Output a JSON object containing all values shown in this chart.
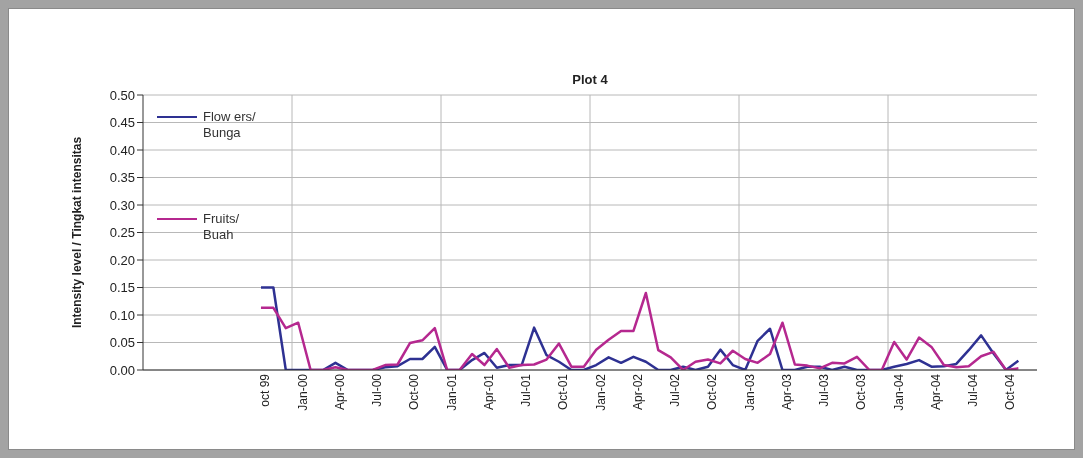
{
  "chart_data": {
    "type": "line",
    "title": "Plot 4",
    "ylabel": "Intensity level / Tingkat intensitas",
    "categories": [
      null,
      null,
      null,
      null,
      null,
      null,
      null,
      null,
      null,
      "oct 99",
      null,
      null,
      "Jan-00",
      null,
      null,
      "Apr-00",
      null,
      null,
      "Jul-00",
      null,
      null,
      "Oct-00",
      null,
      null,
      "Jan-01",
      null,
      null,
      "Apr-01",
      null,
      null,
      "Jul-01",
      null,
      null,
      "Oct-01",
      null,
      null,
      "Jan-02",
      null,
      null,
      "Apr-02",
      null,
      null,
      "Jul-02",
      null,
      null,
      "Oct-02",
      null,
      null,
      "Jan-03",
      null,
      null,
      "Apr-03",
      null,
      null,
      "Jul-03",
      null,
      null,
      "Oct-03",
      null,
      null,
      "Jan-04",
      null,
      null,
      "Apr-04",
      null,
      null,
      "Jul-04",
      null,
      null,
      "Oct-04",
      null,
      null
    ],
    "series": [
      {
        "name": "Flow ers/ Bunga",
        "color": "#2e3192",
        "values": [
          null,
          null,
          null,
          null,
          null,
          null,
          null,
          null,
          null,
          0.15,
          0.15,
          0,
          0,
          0,
          0,
          0.013,
          0,
          0,
          0,
          0.005,
          0.007,
          0.02,
          0.02,
          0.042,
          0,
          0,
          0.018,
          0.031,
          0.004,
          0.009,
          0.009,
          0.077,
          0.027,
          0.015,
          0,
          0,
          0.009,
          0.023,
          0.013,
          0.024,
          0.015,
          0,
          0,
          0.006,
          0,
          0.006,
          0.037,
          0.009,
          0,
          0.053,
          0.075,
          0,
          0,
          0.006,
          0.006,
          0,
          0.006,
          0,
          0,
          0,
          0.006,
          0.011,
          0.018,
          0.006,
          0.007,
          0.011,
          0.036,
          0.063,
          0.03,
          0,
          0.017,
          null
        ]
      },
      {
        "name": "Fruits/ Buah",
        "color": "#b5288f",
        "values": [
          null,
          null,
          null,
          null,
          null,
          null,
          null,
          null,
          null,
          0.113,
          0.113,
          0.076,
          0.086,
          0,
          0,
          0.005,
          0,
          0,
          0,
          0.009,
          0.01,
          0.049,
          0.054,
          0.076,
          0,
          0,
          0.029,
          0.009,
          0.038,
          0.004,
          0.009,
          0.01,
          0.019,
          0.048,
          0.006,
          0.006,
          0.037,
          0.055,
          0.071,
          0.071,
          0.14,
          0.036,
          0.023,
          0,
          0.015,
          0.019,
          0.012,
          0.035,
          0.02,
          0.013,
          0.029,
          0.086,
          0.01,
          0.008,
          0.003,
          0.013,
          0.012,
          0.024,
          0,
          0,
          0.051,
          0.019,
          0.059,
          0.042,
          0.009,
          0.005,
          0.007,
          0.025,
          0.033,
          0,
          0.003,
          null
        ]
      }
    ],
    "ylim": [
      0,
      0.5
    ],
    "yticks": [
      {
        "value": 0,
        "label": "0.00"
      },
      {
        "value": 0.05,
        "label": "0.05"
      },
      {
        "value": 0.1,
        "label": "0.10"
      },
      {
        "value": 0.15,
        "label": "0.15"
      },
      {
        "value": 0.2,
        "label": "0.20"
      },
      {
        "value": 0.25,
        "label": "0.25"
      },
      {
        "value": 0.3,
        "label": "0.30"
      },
      {
        "value": 0.35,
        "label": "0.35"
      },
      {
        "value": 0.4,
        "label": "0.40"
      },
      {
        "value": 0.45,
        "label": "0.45"
      },
      {
        "value": 0.5,
        "label": "0.50"
      }
    ],
    "grid": true,
    "legend": "top left",
    "marker": "none",
    "line_style": "solid"
  }
}
